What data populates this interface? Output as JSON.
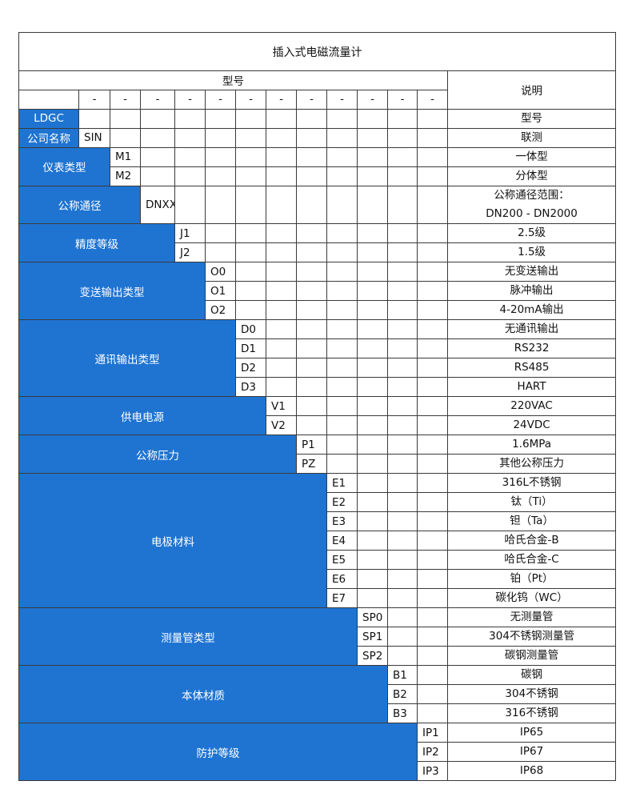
{
  "title": "插入式电磁流量计",
  "header": {
    "model_label": "型号",
    "desc_label": "说明",
    "dash": "-"
  },
  "accent_color": "#1f74d2",
  "groups": [
    {
      "label": "LDGC",
      "codes": [
        ""
      ],
      "descs": [
        "型号"
      ]
    },
    {
      "label": "公司名称",
      "codes": [
        "SIN"
      ],
      "descs": [
        "联测"
      ]
    },
    {
      "label": "仪表类型",
      "codes": [
        "M1",
        "M2"
      ],
      "descs": [
        "一体型",
        "分体型"
      ]
    },
    {
      "label": "公称通径",
      "codes": [
        "DNXX"
      ],
      "descs": [
        "公称通径范围：\nDN200 - DN2000"
      ]
    },
    {
      "label": "精度等级",
      "codes": [
        "J1",
        "J2"
      ],
      "descs": [
        "2.5级",
        "1.5级"
      ]
    },
    {
      "label": "变送输出类型",
      "codes": [
        "O0",
        "O1",
        "O2"
      ],
      "descs": [
        "无变送输出",
        "脉冲输出",
        "4-20mA输出"
      ]
    },
    {
      "label": "通讯输出类型",
      "codes": [
        "D0",
        "D1",
        "D2",
        "D3"
      ],
      "descs": [
        "无通讯输出",
        "RS232",
        "RS485",
        "HART"
      ]
    },
    {
      "label": "供电电源",
      "codes": [
        "V1",
        "V2"
      ],
      "descs": [
        "220VAC",
        "24VDC"
      ]
    },
    {
      "label": "公称压力",
      "codes": [
        "P1",
        "PZ"
      ],
      "descs": [
        "1.6MPa",
        "其他公称压力"
      ]
    },
    {
      "label": "电极材料",
      "codes": [
        "E1",
        "E2",
        "E3",
        "E4",
        "E5",
        "E6",
        "E7"
      ],
      "descs": [
        "316L不锈钢",
        "钛（Ti）",
        "钽（Ta）",
        "哈氏合金-B",
        "哈氏合金-C",
        "铂（Pt）",
        "碳化钨（WC）"
      ]
    },
    {
      "label": "测量管类型",
      "codes": [
        "SP0",
        "SP1",
        "SP2"
      ],
      "descs": [
        "无测量管",
        "304不锈钢测量管",
        "碳钢测量管"
      ]
    },
    {
      "label": "本体材质",
      "codes": [
        "B1",
        "B2",
        "B3"
      ],
      "descs": [
        "碳钢",
        "304不锈钢",
        "316不锈钢"
      ]
    },
    {
      "label": "防护等级",
      "codes": [
        "IP1",
        "IP2",
        "IP3"
      ],
      "descs": [
        "IP65",
        "IP67",
        "IP68"
      ]
    }
  ]
}
